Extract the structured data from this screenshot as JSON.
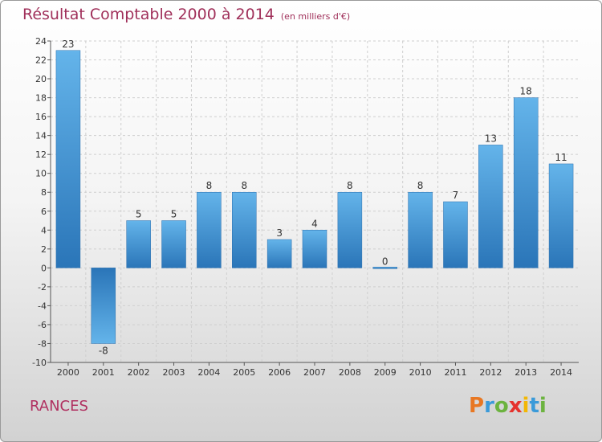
{
  "header": {
    "title": "Résultat Comptable 2000 à 2014",
    "subtitle": "(en milliers d'€)"
  },
  "footer": {
    "place": "RANCES",
    "logo_letters": [
      "P",
      "r",
      "o",
      "x",
      "i",
      "t",
      "i"
    ],
    "logo_colors": [
      "#e87722",
      "#3a9ad9",
      "#6cb33f",
      "#e5322d",
      "#f2b705",
      "#3a9ad9",
      "#6cb33f"
    ]
  },
  "chart_data": {
    "type": "bar",
    "title": "Résultat Comptable 2000 à 2014",
    "subtitle": "(en milliers d'€)",
    "categories": [
      "2000",
      "2001",
      "2002",
      "2003",
      "2004",
      "2005",
      "2006",
      "2007",
      "2008",
      "2009",
      "2010",
      "2011",
      "2012",
      "2013",
      "2014"
    ],
    "values": [
      23,
      -8,
      5,
      5,
      8,
      8,
      3,
      4,
      8,
      0,
      8,
      7,
      13,
      18,
      11
    ],
    "ylim": [
      -10,
      24
    ],
    "yticks": [
      -10,
      -8,
      -6,
      -4,
      -2,
      0,
      2,
      4,
      6,
      8,
      10,
      12,
      14,
      16,
      18,
      20,
      22,
      24
    ],
    "grid": true,
    "bar_color": "#3d8fd0",
    "bar_color_light": "#64b4ea",
    "bar_color_dark": "#2a75b8"
  }
}
